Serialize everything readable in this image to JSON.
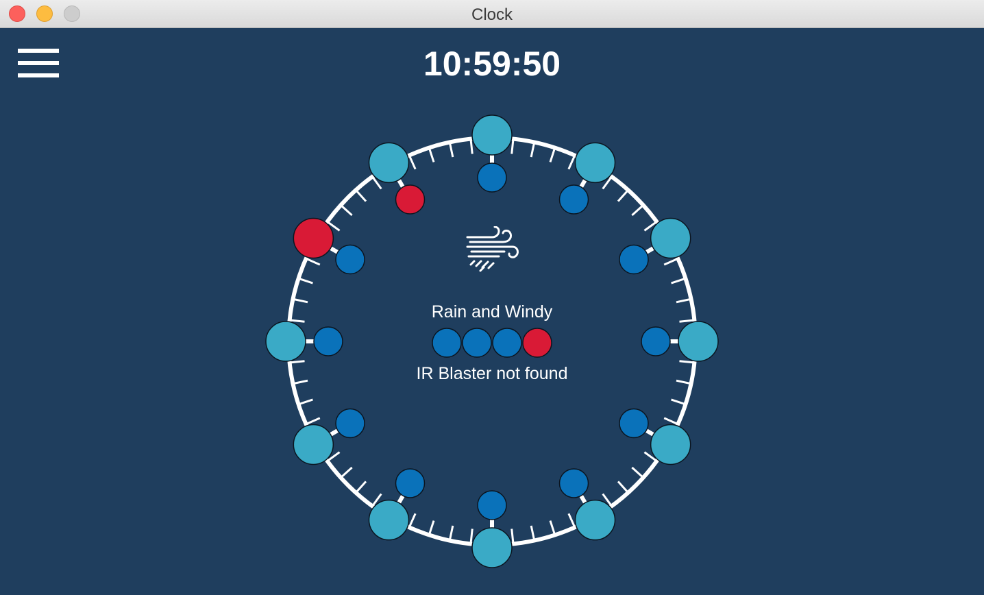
{
  "window": {
    "title": "Clock"
  },
  "header": {
    "time": "10:59:50",
    "menu_icon": "hamburger-menu-icon"
  },
  "weather": {
    "icon": "wind-rain-icon",
    "condition": "Rain and Windy"
  },
  "indicators": {
    "status_dots": [
      "blue",
      "blue",
      "blue",
      "red"
    ],
    "message": "IR Blaster not found"
  },
  "clock": {
    "hour_markers": [
      "teal",
      "teal",
      "teal",
      "teal",
      "teal",
      "teal",
      "teal",
      "teal",
      "teal",
      "teal",
      "red",
      "teal"
    ],
    "inner_markers": [
      "blue",
      "blue",
      "blue",
      "blue",
      "blue",
      "blue",
      "blue",
      "blue",
      "blue",
      "blue",
      "blue",
      "red"
    ]
  },
  "colors": {
    "background": "#1f3e5e",
    "teal": "#3aaac6",
    "blue": "#0a72ba",
    "red": "#d91a36",
    "white": "#ffffff"
  }
}
